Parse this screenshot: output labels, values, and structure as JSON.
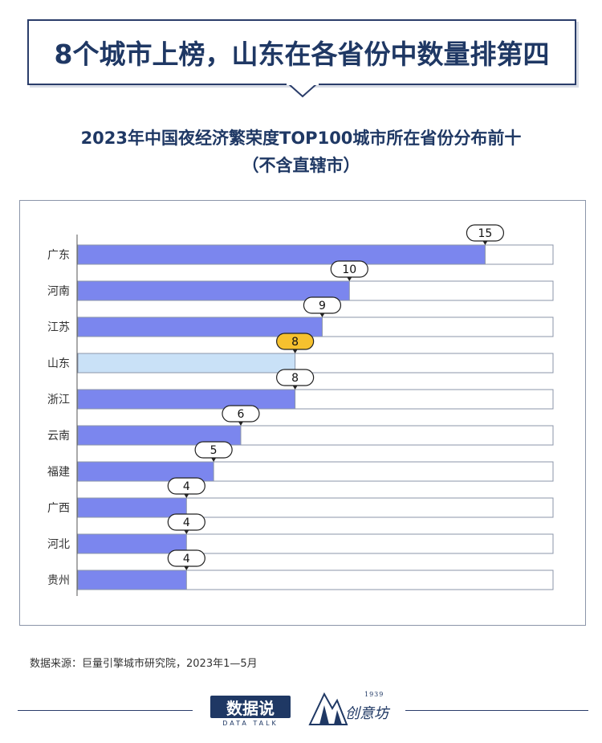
{
  "headline": "8个城市上榜，山东在各省份中数量排第四",
  "chart_data": {
    "type": "bar",
    "orientation": "horizontal",
    "title_line1": "2023年中国夜经济繁荣度TOP100城市所在省份分布前十",
    "title_line2": "（不含直辖市）",
    "categories": [
      "广东",
      "河南",
      "江苏",
      "山东",
      "浙江",
      "云南",
      "福建",
      "广西",
      "河北",
      "贵州"
    ],
    "values": [
      15,
      10,
      9,
      8,
      8,
      6,
      5,
      4,
      4,
      4
    ],
    "xlim": [
      0,
      17.5
    ],
    "highlight_category": "山东",
    "colors": {
      "bar": "#7b86ee",
      "highlight_bar": "#c9e1f7",
      "track": "#ffffff",
      "highlight_label": "#f6c12e",
      "label": "#ffffff"
    }
  },
  "source": "数据来源：巨量引擎城市研究院，2023年1—5月",
  "brand": {
    "name": "数据说",
    "sub": "DATA TALK"
  },
  "partner": {
    "year": "1939",
    "name": "创意坊"
  }
}
